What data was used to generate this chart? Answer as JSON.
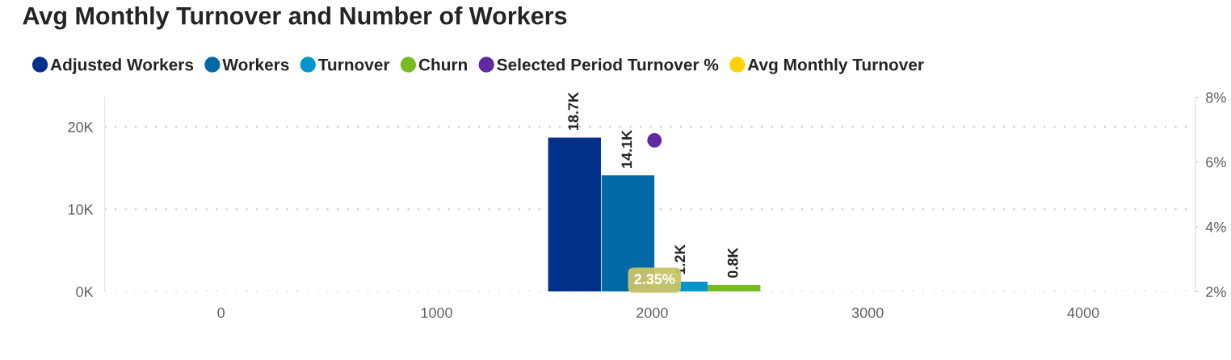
{
  "chart_data": {
    "type": "bar",
    "title": "Avg Monthly Turnover and Number of Workers",
    "series": [
      {
        "name": "Adjusted Workers",
        "color": "#00308a",
        "x": [
          1640
        ],
        "values": [
          18700
        ],
        "value_labels": [
          "18.7K"
        ]
      },
      {
        "name": "Workers",
        "color": "#0069a6",
        "x": [
          1888
        ],
        "values": [
          14100
        ],
        "value_labels": [
          "14.1K"
        ]
      },
      {
        "name": "Turnover",
        "color": "#0096cc",
        "x": [
          2135
        ],
        "values": [
          1200
        ],
        "value_labels": [
          "1.2K"
        ]
      },
      {
        "name": "Churn",
        "color": "#76bc21",
        "x": [
          2380
        ],
        "values": [
          800
        ],
        "value_labels": [
          "0.8K"
        ]
      },
      {
        "name": "Selected Period Turnover %",
        "type": "scatter",
        "axis": "y2",
        "color": "#6429a0",
        "x": [
          2011
        ],
        "values": [
          6.67
        ]
      },
      {
        "name": "Avg Monthly Turnover",
        "type": "scatter",
        "axis": "y2",
        "color": "#ffd100",
        "x": [
          2011
        ],
        "values": [
          2.35
        ],
        "value_labels": [
          "2.35%"
        ]
      }
    ],
    "xlim": [
      -540,
      4520
    ],
    "xticks": [
      0,
      1000,
      2000,
      3000,
      4000
    ],
    "ylim": [
      0,
      23600
    ],
    "yticks": [
      {
        "value": 0,
        "label": "0K"
      },
      {
        "value": 10000,
        "label": "10K"
      },
      {
        "value": 20000,
        "label": "20K"
      }
    ],
    "y2lim": [
      2,
      8
    ],
    "y2ticks": [
      {
        "value": 2,
        "label": "2%"
      },
      {
        "value": 4,
        "label": "4%"
      },
      {
        "value": 6,
        "label": "6%"
      },
      {
        "value": 8,
        "label": "8%"
      }
    ],
    "grid": "y",
    "legend": "top left",
    "marker": "circle"
  }
}
